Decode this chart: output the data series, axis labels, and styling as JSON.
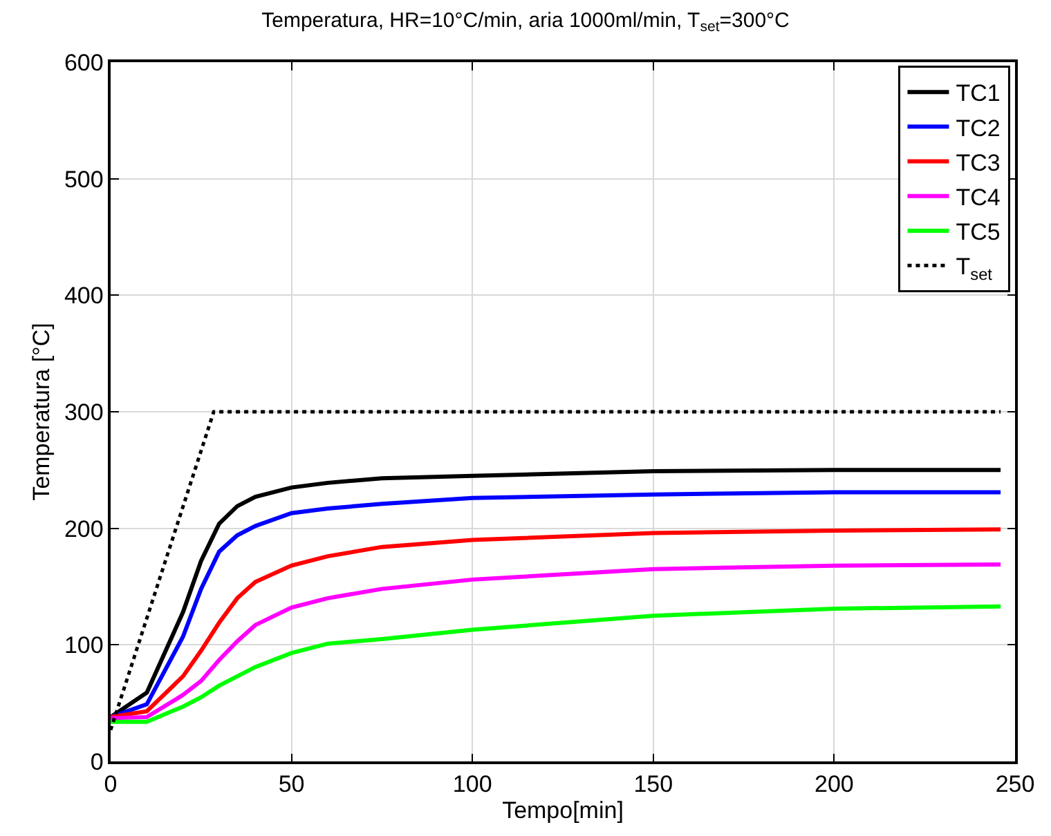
{
  "chart_data": {
    "type": "line",
    "title": "Temperatura, HR=10°C/min, aria 1000ml/min, T$_{set}$=300°C",
    "xlabel": "Tempo[min]",
    "ylabel": "Temperatura [°C]",
    "xlim": [
      0,
      250
    ],
    "xticks": [
      0,
      50,
      100,
      150,
      200,
      250
    ],
    "ylim": [
      0,
      600
    ],
    "yticks": [
      0,
      100,
      200,
      300,
      400,
      500,
      600
    ],
    "grid": true,
    "legend": "top right",
    "marker": "none",
    "x": [
      0,
      10,
      20,
      25,
      30,
      35,
      40,
      50,
      60,
      75,
      100,
      150,
      200,
      246
    ],
    "series": [
      {
        "name": "TC1",
        "color": "#000000",
        "line_style": "solid",
        "values": [
          38,
          59,
          128,
          172,
          204,
          219,
          227,
          235,
          239,
          243,
          245,
          249,
          250,
          250
        ]
      },
      {
        "name": "TC2",
        "color": "#0000ff",
        "line_style": "solid",
        "values": [
          38,
          49,
          107,
          148,
          180,
          194,
          202,
          213,
          217,
          221,
          226,
          229,
          231,
          231
        ]
      },
      {
        "name": "TC3",
        "color": "#ff0000",
        "line_style": "solid",
        "values": [
          38,
          43,
          73,
          95,
          119,
          140,
          154,
          168,
          176,
          184,
          190,
          196,
          198,
          199
        ]
      },
      {
        "name": "TC4",
        "color": "#ff00ff",
        "line_style": "solid",
        "values": [
          37,
          38,
          57,
          69,
          87,
          103,
          117,
          132,
          140,
          148,
          156,
          165,
          168,
          169
        ]
      },
      {
        "name": "TC5",
        "color": "#00ff00",
        "line_style": "solid",
        "values": [
          34,
          34,
          47,
          55,
          65,
          73,
          81,
          93,
          101,
          105,
          113,
          125,
          131,
          133
        ]
      },
      {
        "name": "T$_{set}$",
        "color": "#000000",
        "line_style": "dotted",
        "x": [
          0,
          28.5,
          246
        ],
        "values": [
          27,
          300,
          300
        ]
      }
    ]
  }
}
